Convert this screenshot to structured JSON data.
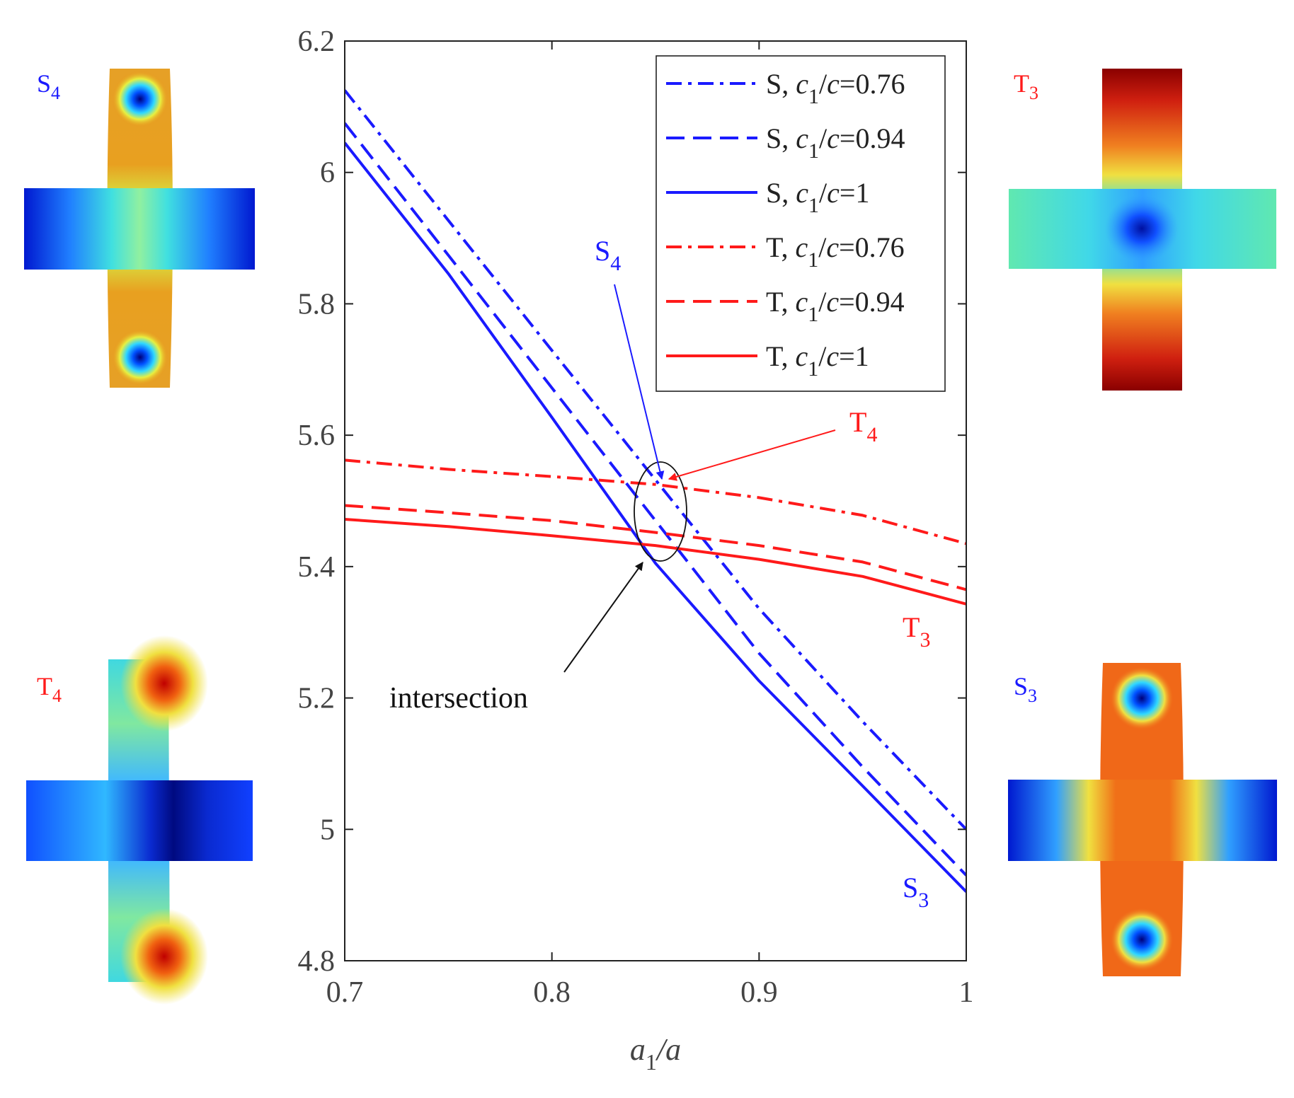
{
  "chart_data": {
    "type": "line",
    "title": "",
    "xlabel": "a1/a",
    "ylabel": "",
    "xlim": [
      0.7,
      1.0
    ],
    "ylim": [
      4.8,
      6.2
    ],
    "xticks": [
      0.7,
      0.8,
      0.9,
      1.0
    ],
    "xtick_labels": [
      "0.7",
      "0.8",
      "0.9",
      "1"
    ],
    "yticks": [
      4.8,
      5.0,
      5.2,
      5.4,
      5.6,
      5.8,
      6.0,
      6.2
    ],
    "ytick_labels": [
      "4.8",
      "5",
      "5.2",
      "5.4",
      "5.6",
      "5.8",
      "6",
      "6.2"
    ],
    "grid": false,
    "legend_position": "top-right",
    "series": [
      {
        "name": "S, c1/c=0.76",
        "family": "S",
        "ratio": "0.76",
        "color": "#1a1aff",
        "dash": "dashdot",
        "x": [
          0.7,
          0.75,
          0.8,
          0.85,
          0.9,
          0.95,
          1.0
        ],
        "y": [
          6.125,
          5.927,
          5.729,
          5.532,
          5.336,
          5.164,
          5.0
        ]
      },
      {
        "name": "S, c1/c=0.94",
        "family": "S",
        "ratio": "0.94",
        "color": "#1a1aff",
        "dash": "dashed",
        "x": [
          0.7,
          0.75,
          0.8,
          0.85,
          0.9,
          0.95,
          1.0
        ],
        "y": [
          6.075,
          5.874,
          5.672,
          5.47,
          5.268,
          5.095,
          4.93
        ]
      },
      {
        "name": "S, c1/c=1",
        "family": "S",
        "ratio": "1",
        "color": "#1a1aff",
        "dash": "solid",
        "x": [
          0.7,
          0.75,
          0.8,
          0.85,
          0.9,
          0.95,
          1.0
        ],
        "y": [
          6.045,
          5.846,
          5.627,
          5.405,
          5.226,
          5.066,
          4.905
        ]
      },
      {
        "name": "T, c1/c=0.76",
        "family": "T",
        "ratio": "0.76",
        "color": "#ff1a1a",
        "dash": "dashdot",
        "x": [
          0.7,
          0.75,
          0.8,
          0.85,
          0.9,
          0.95,
          1.0
        ],
        "y": [
          5.562,
          5.548,
          5.537,
          5.525,
          5.505,
          5.478,
          5.435
        ]
      },
      {
        "name": "T, c1/c=0.94",
        "family": "T",
        "ratio": "0.94",
        "color": "#ff1a1a",
        "dash": "dashed",
        "x": [
          0.7,
          0.75,
          0.8,
          0.85,
          0.9,
          0.95,
          1.0
        ],
        "y": [
          5.493,
          5.482,
          5.47,
          5.452,
          5.432,
          5.407,
          5.365
        ]
      },
      {
        "name": "T, c1/c=1",
        "family": "T",
        "ratio": "1",
        "color": "#ff1a1a",
        "dash": "solid",
        "x": [
          0.7,
          0.75,
          0.8,
          0.85,
          0.9,
          0.95,
          1.0
        ],
        "y": [
          5.472,
          5.461,
          5.447,
          5.432,
          5.411,
          5.385,
          5.343
        ]
      }
    ],
    "annotations": {
      "s4": {
        "letter": "S",
        "sub": "4",
        "color": "#1a1aff"
      },
      "t4": {
        "letter": "T",
        "sub": "4",
        "color": "#ff1a1a"
      },
      "t3": {
        "letter": "T",
        "sub": "3",
        "color": "#ff1a1a"
      },
      "s3": {
        "letter": "S",
        "sub": "3",
        "color": "#1a1aff"
      },
      "intersection": {
        "text": "intersection",
        "color": "#111111"
      }
    }
  },
  "mode_shapes": [
    {
      "id": "S4",
      "letter": "S",
      "sub": "4",
      "color": "#1a1aff"
    },
    {
      "id": "T3",
      "letter": "T",
      "sub": "3",
      "color": "#ff1a1a"
    },
    {
      "id": "T4",
      "letter": "T",
      "sub": "4",
      "color": "#ff1a1a"
    },
    {
      "id": "S3",
      "letter": "S",
      "sub": "3",
      "color": "#1a1aff"
    }
  ]
}
